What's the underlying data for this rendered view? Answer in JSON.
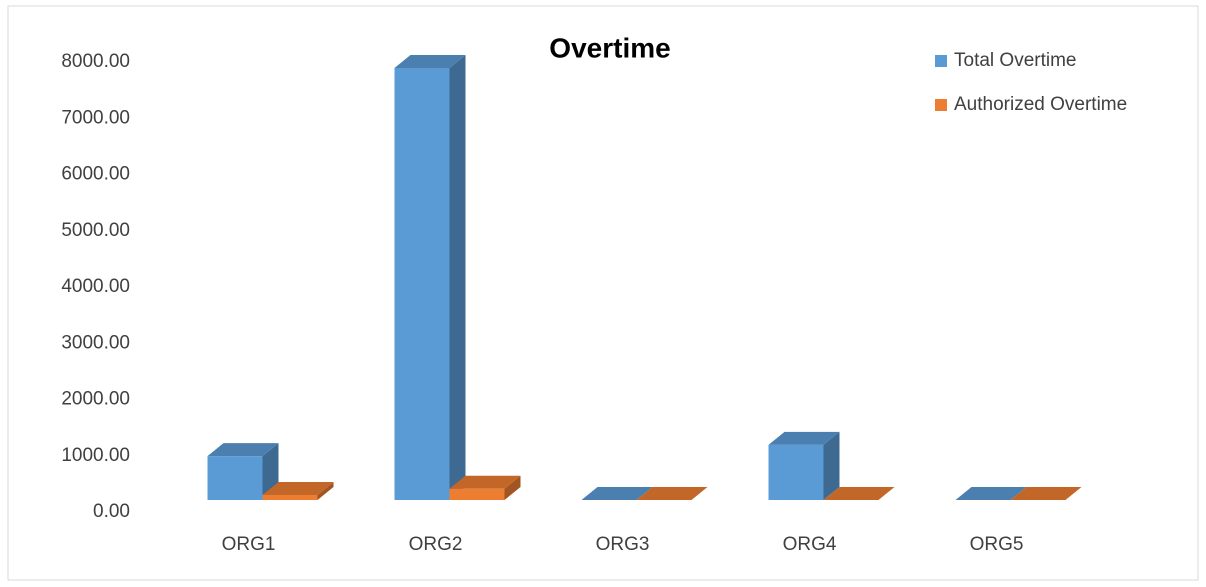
{
  "chart_data": {
    "type": "bar3d",
    "title": "Overtime",
    "categories": [
      "ORG1",
      "ORG2",
      "ORG3",
      "ORG4",
      "ORG5"
    ],
    "series": [
      {
        "name": "Total Overtime",
        "color": "#5b9bd5",
        "values": [
          780,
          7680,
          0,
          980,
          0
        ]
      },
      {
        "name": "Authorized Overtime",
        "color": "#ed7d31",
        "values": [
          90,
          200,
          0,
          0,
          0
        ]
      }
    ],
    "ylim": [
      0,
      8000
    ],
    "yticks": [
      {
        "value": 0,
        "label": "0.00"
      },
      {
        "value": 1000,
        "label": "1000.00"
      },
      {
        "value": 2000,
        "label": "2000.00"
      },
      {
        "value": 3000,
        "label": "3000.00"
      },
      {
        "value": 4000,
        "label": "4000.00"
      },
      {
        "value": 5000,
        "label": "5000.00"
      },
      {
        "value": 6000,
        "label": "6000.00"
      },
      {
        "value": 7000,
        "label": "7000.00"
      },
      {
        "value": 8000,
        "label": "8000.00"
      }
    ],
    "legend": "top-right"
  }
}
